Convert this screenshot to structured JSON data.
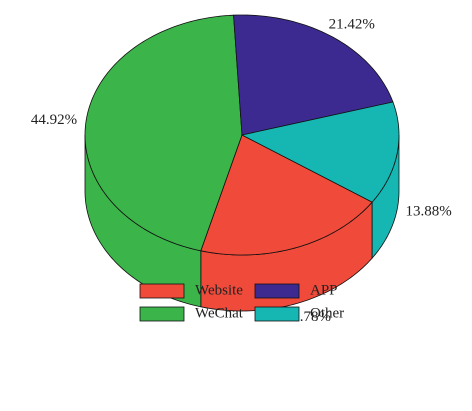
{
  "chart_data": {
    "type": "pie3d",
    "categories": [
      "Website",
      "WeChat",
      "APP",
      "Other"
    ],
    "values": [
      19.78,
      44.92,
      21.42,
      13.88
    ],
    "value_labels": [
      "19.78%",
      "44.92%",
      "21.42%",
      "13.88%"
    ],
    "colors": [
      "#ef4a3a",
      "#3bb44a",
      "#3c2a90",
      "#16b7b3"
    ],
    "legend": "bottom"
  }
}
